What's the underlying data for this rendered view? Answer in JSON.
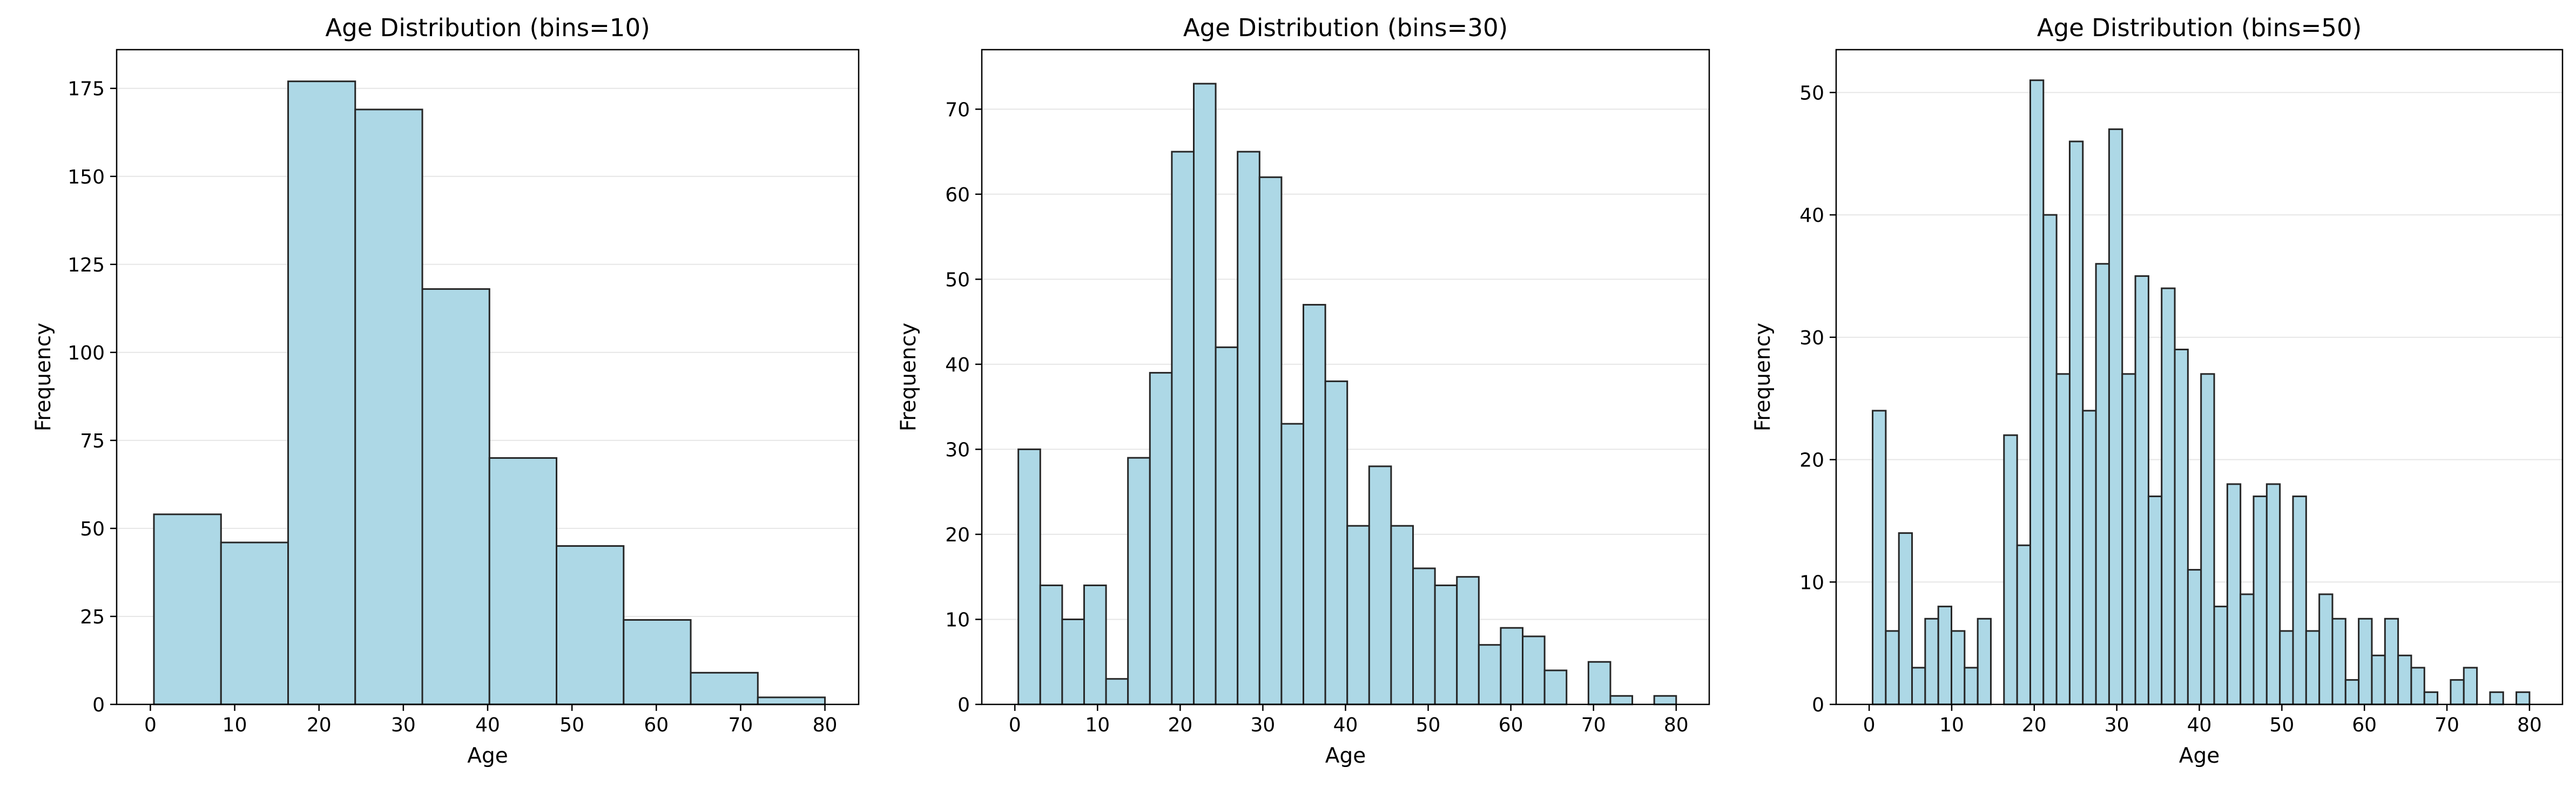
{
  "bar_fill": "#add8e6",
  "bar_edge": "#262626",
  "grid_color": "#e6e6e6",
  "chart_data": [
    {
      "type": "bar",
      "title": "Age Distribution (bins=10)",
      "xlabel": "Age",
      "ylabel": "Frequency",
      "xlim": [
        -4,
        84
      ],
      "ylim": [
        0,
        186
      ],
      "xticks": [
        0,
        10,
        20,
        30,
        40,
        50,
        60,
        70,
        80
      ],
      "yticks": [
        0,
        25,
        50,
        75,
        100,
        125,
        150,
        175
      ],
      "grid": "y",
      "bin_range": [
        0.42,
        80
      ],
      "values": [
        54,
        46,
        177,
        169,
        118,
        70,
        45,
        24,
        9,
        2
      ]
    },
    {
      "type": "bar",
      "title": "Age Distribution (bins=30)",
      "xlabel": "Age",
      "ylabel": "Frequency",
      "xlim": [
        -4,
        84
      ],
      "ylim": [
        0,
        77
      ],
      "xticks": [
        0,
        10,
        20,
        30,
        40,
        50,
        60,
        70,
        80
      ],
      "yticks": [
        0,
        10,
        20,
        30,
        40,
        50,
        60,
        70
      ],
      "grid": "y",
      "bin_range": [
        0.42,
        80
      ],
      "values": [
        30,
        14,
        10,
        14,
        3,
        29,
        39,
        65,
        73,
        42,
        65,
        62,
        33,
        47,
        38,
        21,
        28,
        21,
        16,
        14,
        15,
        7,
        9,
        8,
        4,
        0,
        5,
        1,
        0,
        1
      ]
    },
    {
      "type": "bar",
      "title": "Age Distribution (bins=50)",
      "xlabel": "Age",
      "ylabel": "Frequency",
      "xlim": [
        -4,
        84
      ],
      "ylim": [
        0,
        53.5
      ],
      "xticks": [
        0,
        10,
        20,
        30,
        40,
        50,
        60,
        70,
        80
      ],
      "yticks": [
        0,
        10,
        20,
        30,
        40,
        50
      ],
      "grid": "y",
      "bin_range": [
        0.42,
        80
      ],
      "values": [
        24,
        6,
        14,
        3,
        7,
        8,
        6,
        3,
        7,
        0,
        22,
        13,
        51,
        40,
        27,
        46,
        24,
        36,
        47,
        27,
        35,
        17,
        34,
        29,
        11,
        27,
        8,
        18,
        9,
        17,
        18,
        6,
        17,
        6,
        9,
        7,
        2,
        7,
        4,
        7,
        4,
        3,
        1,
        0,
        2,
        3,
        0,
        1,
        0,
        1
      ]
    }
  ]
}
